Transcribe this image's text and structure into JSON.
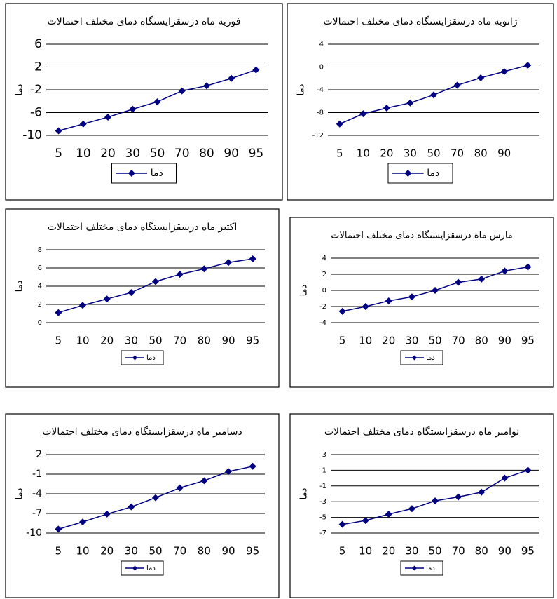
{
  "chart_data": [
    {
      "type": "line",
      "title": "فوریه ماه درسقزایستگاه دمای مختلف احتمالات",
      "ylabel": "دما",
      "categories": [
        5,
        10,
        20,
        30,
        50,
        70,
        80,
        90,
        95
      ],
      "series": [
        {
          "name": "دما",
          "color": "#000080",
          "values": [
            -9.2,
            -8,
            -6.8,
            -5.4,
            -4.1,
            -2.2,
            -1.3,
            0,
            1.5
          ]
        }
      ],
      "ylim": [
        -10,
        6
      ],
      "yticks": [
        6,
        2,
        -2,
        -6,
        -10
      ],
      "grid": true
    },
    {
      "type": "line",
      "title": "ژانویه ماه درسقزایستگاه دمای مختلف احتمالات",
      "ylabel": "دما",
      "categories": [
        5,
        10,
        20,
        30,
        50,
        70,
        80,
        90,
        null
      ],
      "series": [
        {
          "name": "دما",
          "color": "#000080",
          "values": [
            -10,
            -8.2,
            -7.2,
            -6.3,
            -4.9,
            -3.2,
            -1.9,
            -0.8,
            0.3
          ]
        }
      ],
      "ylim": [
        -12,
        4
      ],
      "yticks": [
        4,
        0,
        -4,
        -8,
        -12
      ],
      "grid": true
    },
    {
      "type": "line",
      "title": "اکتبر ماه درسقزایستگاه دمای مختلف احتمالات",
      "ylabel": "دما",
      "categories": [
        5,
        10,
        20,
        30,
        50,
        70,
        80,
        90,
        95
      ],
      "series": [
        {
          "name": "دما",
          "color": "#000080",
          "values": [
            1.1,
            1.9,
            2.6,
            3.3,
            4.5,
            5.3,
            5.9,
            6.6,
            7.0
          ]
        }
      ],
      "ylim": [
        0,
        8
      ],
      "yticks": [
        8,
        6,
        4,
        2,
        0
      ],
      "grid": true
    },
    {
      "type": "line",
      "title": "مارس ماه درسقزایستگاه دمای مختلف احتمالات",
      "ylabel": "دما",
      "categories": [
        5,
        10,
        20,
        30,
        50,
        70,
        80,
        90,
        95
      ],
      "series": [
        {
          "name": "دما",
          "color": "#000080",
          "values": [
            -2.6,
            -2,
            -1.3,
            -0.8,
            0,
            1,
            1.4,
            2.4,
            2.9
          ]
        }
      ],
      "ylim": [
        -4,
        4
      ],
      "yticks": [
        4,
        2,
        0,
        -2,
        -4
      ],
      "grid": true
    },
    {
      "type": "line",
      "title": "دسامبر ماه درسقزایستگاه دمای مختلف احتمالات",
      "ylabel": "دما",
      "categories": [
        5,
        10,
        20,
        30,
        50,
        70,
        80,
        90,
        95
      ],
      "series": [
        {
          "name": "دما",
          "color": "#000080",
          "values": [
            -9.4,
            -8.3,
            -7.1,
            -6,
            -4.6,
            -3.1,
            -2,
            -0.6,
            0.2
          ]
        }
      ],
      "ylim": [
        -10,
        2
      ],
      "yticks": [
        2,
        -1,
        -4,
        -7,
        -10
      ],
      "grid": true
    },
    {
      "type": "line",
      "title": "نوامبر ماه درسقزایستگاه دمای مختلف احتمالات",
      "ylabel": "دما",
      "categories": [
        5,
        10,
        20,
        30,
        50,
        70,
        80,
        90,
        95
      ],
      "series": [
        {
          "name": "دما",
          "color": "#000080",
          "values": [
            -5.9,
            -5.4,
            -4.6,
            -3.9,
            -2.9,
            -2.4,
            -1.8,
            0,
            1
          ]
        }
      ],
      "ylim": [
        -7,
        3
      ],
      "yticks": [
        3,
        1,
        -1,
        -3,
        -5,
        -7
      ],
      "grid": true
    }
  ]
}
